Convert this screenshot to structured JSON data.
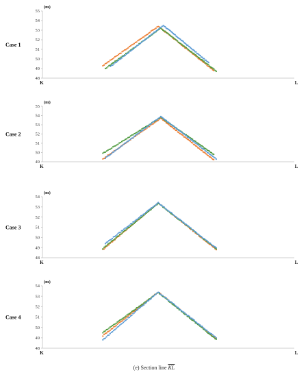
{
  "caption": {
    "label": "(e)",
    "text": "Section line",
    "symbol": "KL"
  },
  "colors": {
    "blue": "#5B9BD5",
    "orange": "#ED7D31",
    "green": "#4E9A3E",
    "axis": "#BFBFBF"
  },
  "chart_data": [
    {
      "type": "scatter",
      "case_label": "Case 1",
      "unit_label": "(m)",
      "x_start_label": "K",
      "x_end_label": "L",
      "ylim": [
        48,
        55
      ],
      "yticks": [
        48,
        49,
        50,
        51,
        52,
        53,
        54,
        55
      ],
      "xlim": [
        0,
        1
      ],
      "series": [
        {
          "color": "orange",
          "start": [
            0.24,
            49.3
          ],
          "peak": [
            0.46,
            53.4
          ],
          "end": [
            0.68,
            48.8
          ]
        },
        {
          "color": "green",
          "start": [
            0.25,
            49.0
          ],
          "peak": [
            0.47,
            53.2
          ],
          "end": [
            0.69,
            48.75
          ]
        },
        {
          "color": "blue",
          "start": [
            0.27,
            49.2
          ],
          "peak": [
            0.48,
            53.5
          ],
          "end": [
            0.66,
            49.6
          ]
        }
      ]
    },
    {
      "type": "scatter",
      "case_label": "Case 2",
      "unit_label": "(m)",
      "x_start_label": "K",
      "x_end_label": "L",
      "ylim": [
        49,
        55
      ],
      "yticks": [
        49,
        50,
        51,
        52,
        53,
        54,
        55
      ],
      "xlim": [
        0,
        1
      ],
      "series": [
        {
          "color": "orange",
          "start": [
            0.24,
            49.3
          ],
          "peak": [
            0.47,
            53.7
          ],
          "end": [
            0.68,
            49.2
          ]
        },
        {
          "color": "green",
          "start": [
            0.24,
            49.9
          ],
          "peak": [
            0.47,
            53.8
          ],
          "end": [
            0.68,
            49.8
          ]
        },
        {
          "color": "blue",
          "start": [
            0.25,
            49.4
          ],
          "peak": [
            0.47,
            53.9
          ],
          "end": [
            0.69,
            49.3
          ]
        }
      ]
    },
    {
      "type": "scatter",
      "case_label": "Case 3",
      "unit_label": "(m)",
      "x_start_label": "K",
      "x_end_label": "L",
      "ylim": [
        48,
        54
      ],
      "yticks": [
        48,
        49,
        50,
        51,
        52,
        53,
        54
      ],
      "xlim": [
        0,
        1
      ],
      "series": [
        {
          "color": "orange",
          "start": [
            0.24,
            48.8
          ],
          "peak": [
            0.46,
            53.4
          ],
          "end": [
            0.69,
            48.8
          ]
        },
        {
          "color": "green",
          "start": [
            0.24,
            48.9
          ],
          "peak": [
            0.46,
            53.35
          ],
          "end": [
            0.69,
            48.9
          ]
        },
        {
          "color": "blue",
          "start": [
            0.25,
            49.4
          ],
          "peak": [
            0.46,
            53.4
          ],
          "end": [
            0.69,
            48.95
          ]
        }
      ]
    },
    {
      "type": "scatter",
      "case_label": "Case 4",
      "unit_label": "(m)",
      "x_start_label": "K",
      "x_end_label": "L",
      "ylim": [
        48,
        54
      ],
      "yticks": [
        48,
        49,
        50,
        51,
        52,
        53,
        54
      ],
      "xlim": [
        0,
        1
      ],
      "series": [
        {
          "color": "orange",
          "start": [
            0.24,
            49.2
          ],
          "peak": [
            0.46,
            53.4
          ],
          "end": [
            0.69,
            48.9
          ]
        },
        {
          "color": "green",
          "start": [
            0.24,
            49.5
          ],
          "peak": [
            0.46,
            53.35
          ],
          "end": [
            0.69,
            48.85
          ]
        },
        {
          "color": "blue",
          "start": [
            0.24,
            48.8
          ],
          "peak": [
            0.46,
            53.4
          ],
          "end": [
            0.69,
            49.0
          ]
        }
      ]
    }
  ]
}
